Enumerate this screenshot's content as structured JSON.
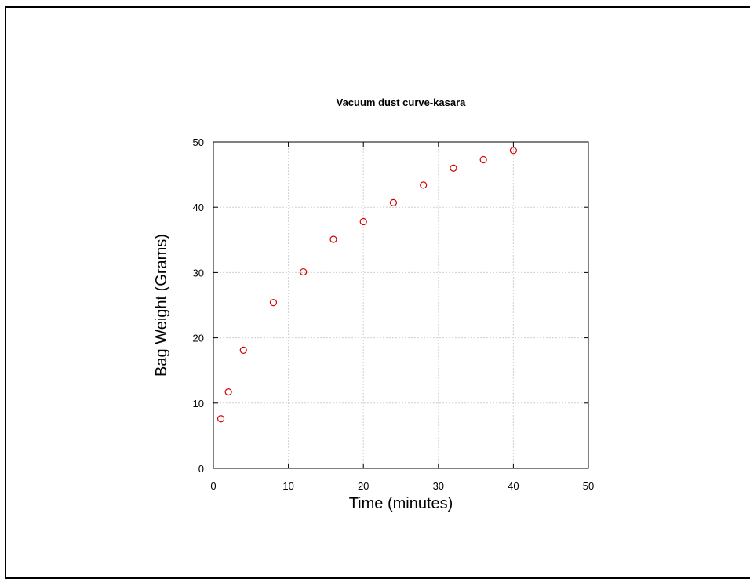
{
  "chart_data": {
    "type": "scatter",
    "title": "Vacuum dust curve-kasara",
    "xlabel": "Time (minutes)",
    "ylabel": "Bag Weight (Grams)",
    "xlim": [
      0,
      50
    ],
    "ylim": [
      0,
      50
    ],
    "xticks": [
      0,
      10,
      20,
      30,
      40,
      50
    ],
    "yticks": [
      0,
      10,
      20,
      30,
      40,
      50
    ],
    "grid": true,
    "marker_color": "#d40000",
    "series": [
      {
        "points": [
          {
            "x": 1,
            "y": 7.6
          },
          {
            "x": 2,
            "y": 11.7
          },
          {
            "x": 4,
            "y": 18.1
          },
          {
            "x": 8,
            "y": 25.4
          },
          {
            "x": 12,
            "y": 30.1
          },
          {
            "x": 16,
            "y": 35.1
          },
          {
            "x": 20,
            "y": 37.8
          },
          {
            "x": 24,
            "y": 40.7
          },
          {
            "x": 28,
            "y": 43.4
          },
          {
            "x": 32,
            "y": 46.0
          },
          {
            "x": 36,
            "y": 47.3
          },
          {
            "x": 40,
            "y": 48.7
          }
        ]
      }
    ]
  }
}
